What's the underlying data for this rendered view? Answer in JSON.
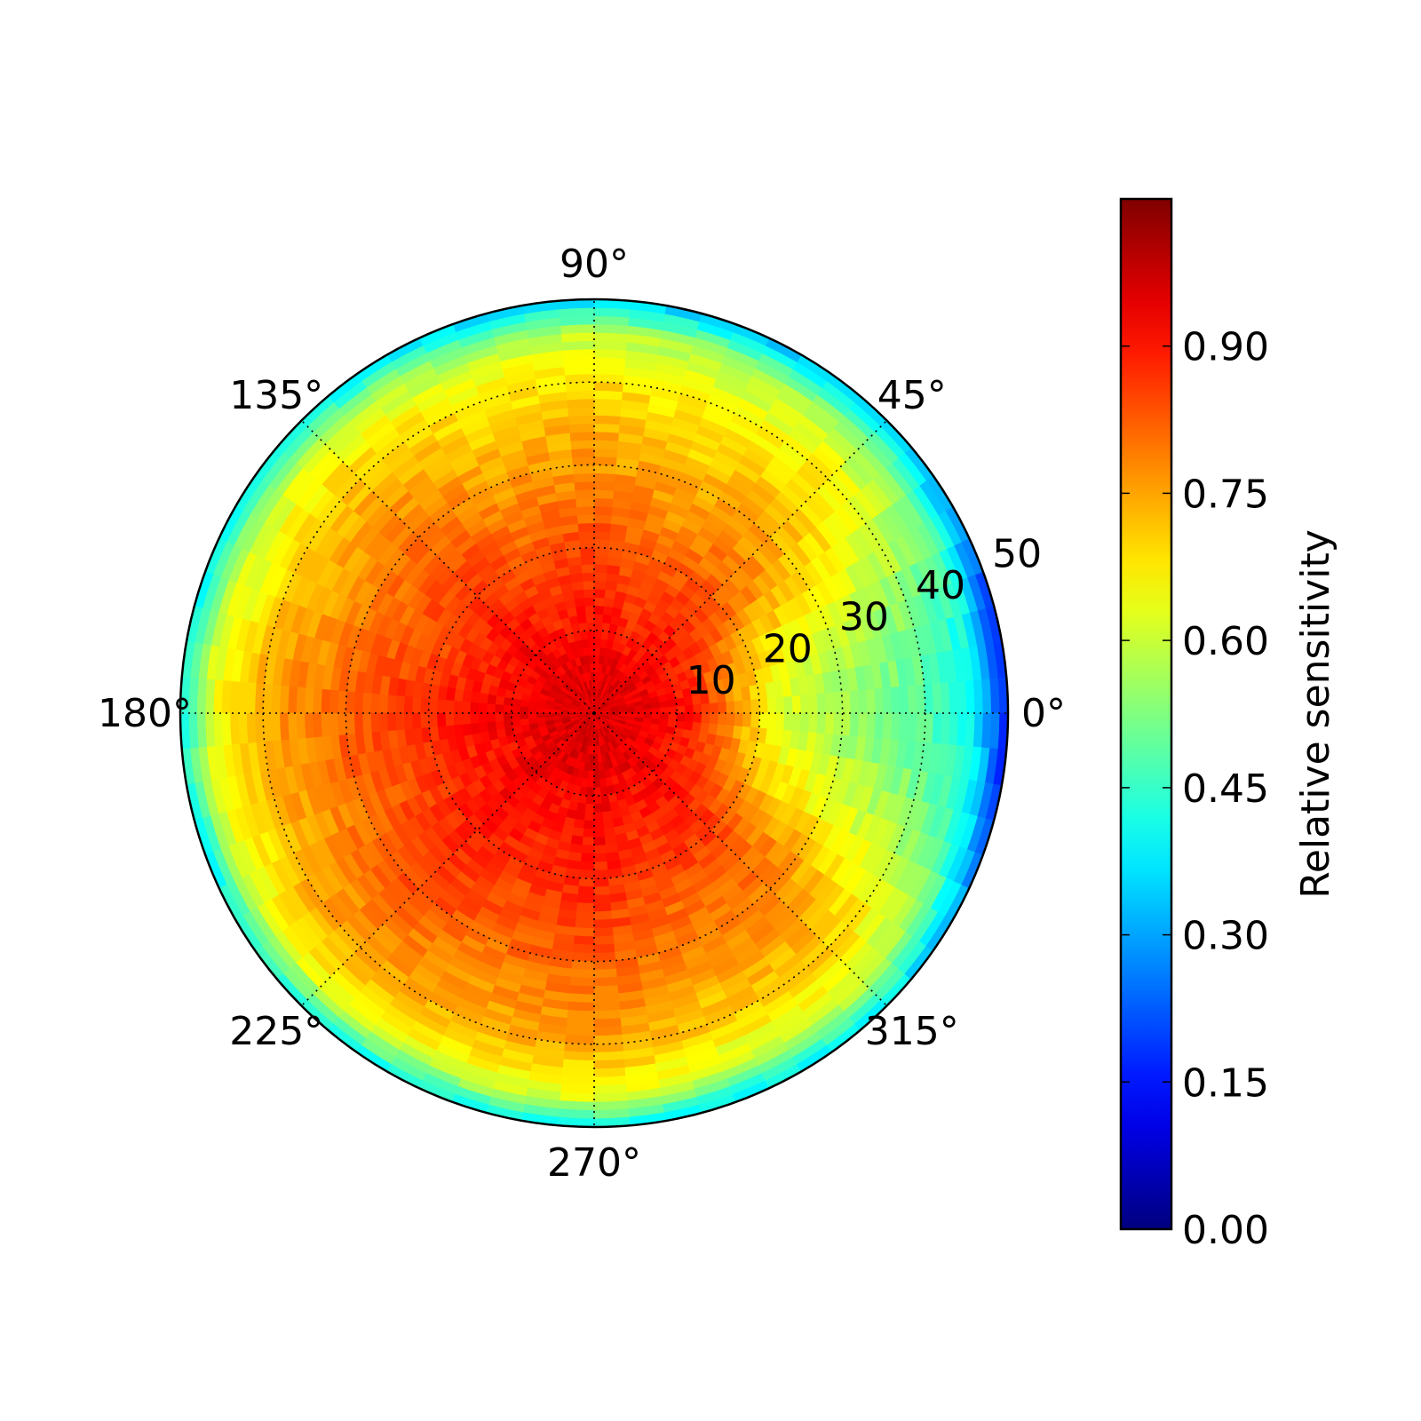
{
  "chart_data": {
    "type": "heatmap",
    "subtype": "polar",
    "title": "",
    "angular_ticks": [
      {
        "deg": 0,
        "label": "0°"
      },
      {
        "deg": 45,
        "label": "45°"
      },
      {
        "deg": 90,
        "label": "90°"
      },
      {
        "deg": 135,
        "label": "135°"
      },
      {
        "deg": 180,
        "label": "180°"
      },
      {
        "deg": 225,
        "label": "225°"
      },
      {
        "deg": 270,
        "label": "270°"
      },
      {
        "deg": 315,
        "label": "315°"
      }
    ],
    "radial_ticks": [
      {
        "r": 10,
        "label": "10"
      },
      {
        "r": 20,
        "label": "20"
      },
      {
        "r": 30,
        "label": "30"
      },
      {
        "r": 40,
        "label": "40"
      },
      {
        "r": 50,
        "label": "50"
      }
    ],
    "rlim": [
      0,
      50
    ],
    "grid": true,
    "colormap": "jet",
    "colorbar": {
      "label": "Relative sensitivity",
      "range": [
        0,
        1.05
      ],
      "ticks": [
        {
          "value": 0.0,
          "label": "0.00"
        },
        {
          "value": 0.15,
          "label": "0.15"
        },
        {
          "value": 0.3,
          "label": "0.30"
        },
        {
          "value": 0.45,
          "label": "0.45"
        },
        {
          "value": 0.6,
          "label": "0.60"
        },
        {
          "value": 0.75,
          "label": "0.75"
        },
        {
          "value": 0.9,
          "label": "0.90"
        }
      ]
    },
    "radial_bins": 50,
    "angular_bins": 72,
    "center_value": 0.97,
    "radial_profile": [
      [
        0,
        0.96
      ],
      [
        10,
        0.93
      ],
      [
        20,
        0.87
      ],
      [
        30,
        0.8
      ],
      [
        40,
        0.72
      ],
      [
        46,
        0.62
      ],
      [
        50,
        0.38
      ]
    ],
    "angular_modulation_note": "",
    "cold_sector_center_deg": 0,
    "cold_sector_depth": 0.2
  }
}
